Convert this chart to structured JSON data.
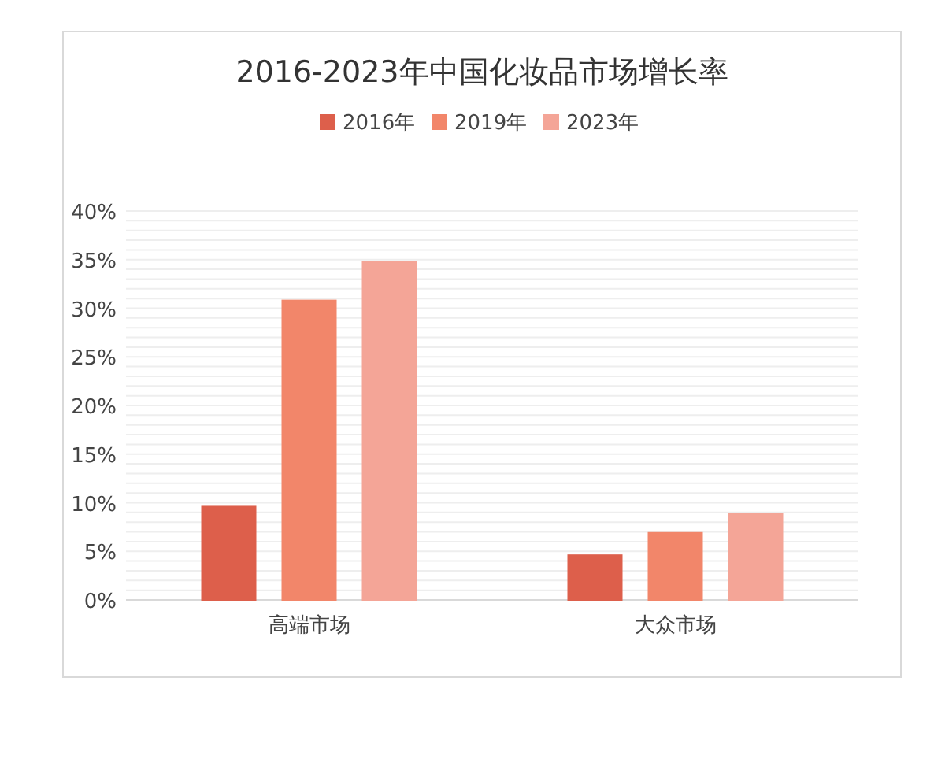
{
  "chart_data": {
    "type": "bar",
    "title": "2016-2023年中国化妆品市场增长率",
    "categories": [
      "高端市场",
      "大众市场"
    ],
    "series": [
      {
        "name": "2016年",
        "color": "#dd5f4b",
        "values": [
          9.6,
          4.6
        ]
      },
      {
        "name": "2019年",
        "color": "#f2866a",
        "values": [
          30.8,
          6.9
        ]
      },
      {
        "name": "2023年",
        "color": "#f4a597",
        "values": [
          34.8,
          8.9
        ]
      }
    ],
    "ylim": [
      0,
      40
    ],
    "yticks": [
      {
        "value": 0,
        "label": "0%"
      },
      {
        "value": 5,
        "label": "5%"
      },
      {
        "value": 10,
        "label": "10%"
      },
      {
        "value": 15,
        "label": "15%"
      },
      {
        "value": 20,
        "label": "20%"
      },
      {
        "value": 25,
        "label": "25%"
      },
      {
        "value": 30,
        "label": "30%"
      },
      {
        "value": 35,
        "label": "35%"
      },
      {
        "value": 40,
        "label": "40%"
      }
    ],
    "grid": "y",
    "legend": "top"
  }
}
